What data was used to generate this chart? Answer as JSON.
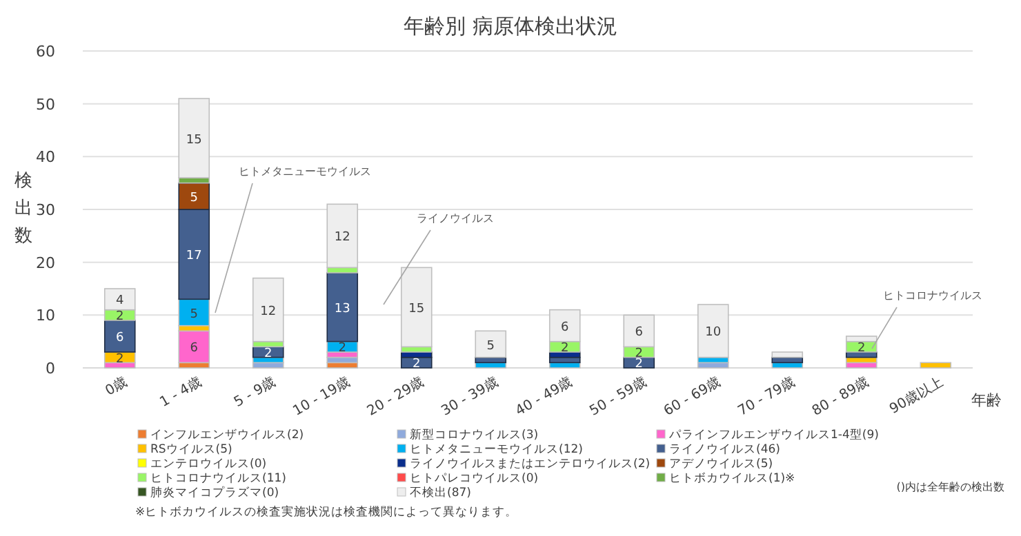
{
  "chart_data": {
    "type": "bar",
    "stacked": true,
    "title": "年齢別 病原体検出状況",
    "xlabel": "年齢",
    "ylabel": "検出数",
    "categories": [
      "0歳",
      "1 - 4歳",
      "5 - 9歳",
      "10 - 19歳",
      "20 - 29歳",
      "30 - 39歳",
      "40 - 49歳",
      "50 - 59歳",
      "60 - 69歳",
      "70 - 79歳",
      "80 - 89歳",
      "90歳以上"
    ],
    "ylim": [
      0,
      60
    ],
    "yticks": [
      0,
      10,
      20,
      30,
      40,
      50,
      60
    ],
    "grid": "y",
    "legend": "bottom",
    "series": [
      {
        "name": "インフルエンザウイルス(2)",
        "color": "#ed7d31",
        "values": [
          0,
          1,
          0,
          1,
          0,
          0,
          0,
          0,
          0,
          0,
          0,
          0
        ]
      },
      {
        "name": "新型コロナウイルス(3)",
        "color": "#8faadc",
        "values": [
          0,
          0,
          1,
          1,
          0,
          0,
          0,
          0,
          1,
          0,
          0,
          0
        ]
      },
      {
        "name": "パラインフルエンザウイルス1-4型(9)",
        "color": "#ff66cc",
        "values": [
          1,
          6,
          0,
          1,
          0,
          0,
          0,
          0,
          0,
          0,
          1,
          0
        ],
        "value_labels": [
          null,
          "6",
          null,
          null,
          null,
          null,
          null,
          null,
          null,
          null,
          null,
          null
        ]
      },
      {
        "name": "RSウイルス(5)",
        "color": "#ffc000",
        "values": [
          2,
          1,
          0,
          0,
          0,
          0,
          0,
          0,
          0,
          0,
          1,
          1
        ],
        "value_labels": [
          "2",
          null,
          null,
          null,
          null,
          null,
          null,
          null,
          null,
          null,
          null,
          null
        ]
      },
      {
        "name": "ヒトメタニューモウイルス(12)",
        "color": "#00b0f0",
        "values": [
          0,
          5,
          1,
          2,
          0,
          1,
          1,
          0,
          1,
          1,
          0,
          0
        ],
        "value_labels": [
          null,
          "5",
          null,
          "2",
          null,
          null,
          null,
          null,
          null,
          null,
          null,
          null
        ]
      },
      {
        "name": "ライノウイルス(46)",
        "color": "#44608f",
        "values": [
          6,
          17,
          2,
          13,
          2,
          1,
          1,
          2,
          0,
          1,
          1,
          0
        ],
        "value_labels": [
          "6",
          "17",
          "2",
          "13",
          "2",
          null,
          null,
          "2",
          null,
          null,
          null,
          null
        ]
      },
      {
        "name": "エンテロウイルス(0)",
        "color": "#ffff00",
        "values": [
          0,
          0,
          0,
          0,
          0,
          0,
          0,
          0,
          0,
          0,
          0,
          0
        ]
      },
      {
        "name": "ライノウイルスまたはエンテロウイルス(2)",
        "color": "#0a2e8c",
        "values": [
          0,
          0,
          0,
          0,
          1,
          0,
          1,
          0,
          0,
          0,
          0,
          0
        ]
      },
      {
        "name": "アデノウイルス(5)",
        "color": "#9e480e",
        "values": [
          0,
          5,
          0,
          0,
          0,
          0,
          0,
          0,
          0,
          0,
          0,
          0
        ],
        "value_labels": [
          null,
          "5",
          null,
          null,
          null,
          null,
          null,
          null,
          null,
          null,
          null,
          null
        ]
      },
      {
        "name": "ヒトコロナウイルス(11)",
        "color": "#99f566",
        "values": [
          2,
          0,
          1,
          1,
          1,
          0,
          2,
          2,
          0,
          0,
          2,
          0
        ],
        "value_labels": [
          "2",
          null,
          null,
          null,
          null,
          null,
          "2",
          "2",
          null,
          null,
          "2",
          null
        ]
      },
      {
        "name": "ヒトパレコウイルス(0)",
        "color": "#ff4b4b",
        "values": [
          0,
          0,
          0,
          0,
          0,
          0,
          0,
          0,
          0,
          0,
          0,
          0
        ]
      },
      {
        "name": "ヒトボカウイルス(1)※",
        "color": "#70ad47",
        "values": [
          0,
          1,
          0,
          0,
          0,
          0,
          0,
          0,
          0,
          0,
          0,
          0
        ]
      },
      {
        "name": "肺炎マイコプラズマ(0)",
        "color": "#375623",
        "values": [
          0,
          0,
          0,
          0,
          0,
          0,
          0,
          0,
          0,
          0,
          0,
          0
        ]
      },
      {
        "name": "不検出(87)",
        "color": "#eeeeee",
        "values": [
          4,
          15,
          12,
          12,
          15,
          5,
          6,
          6,
          10,
          1,
          1,
          0
        ],
        "value_labels": [
          "4",
          "15",
          "12",
          "12",
          "15",
          "5",
          "6",
          "6",
          "10",
          null,
          null,
          null
        ]
      }
    ],
    "annotations": [
      "ヒトメタニューモウイルス",
      "ライノウイルス",
      "ヒトコロナウイルス",
      "()内は全年齢の検出数",
      "※ヒトボカウイルスの検査実施状況は検査機関によって異なります。"
    ]
  }
}
